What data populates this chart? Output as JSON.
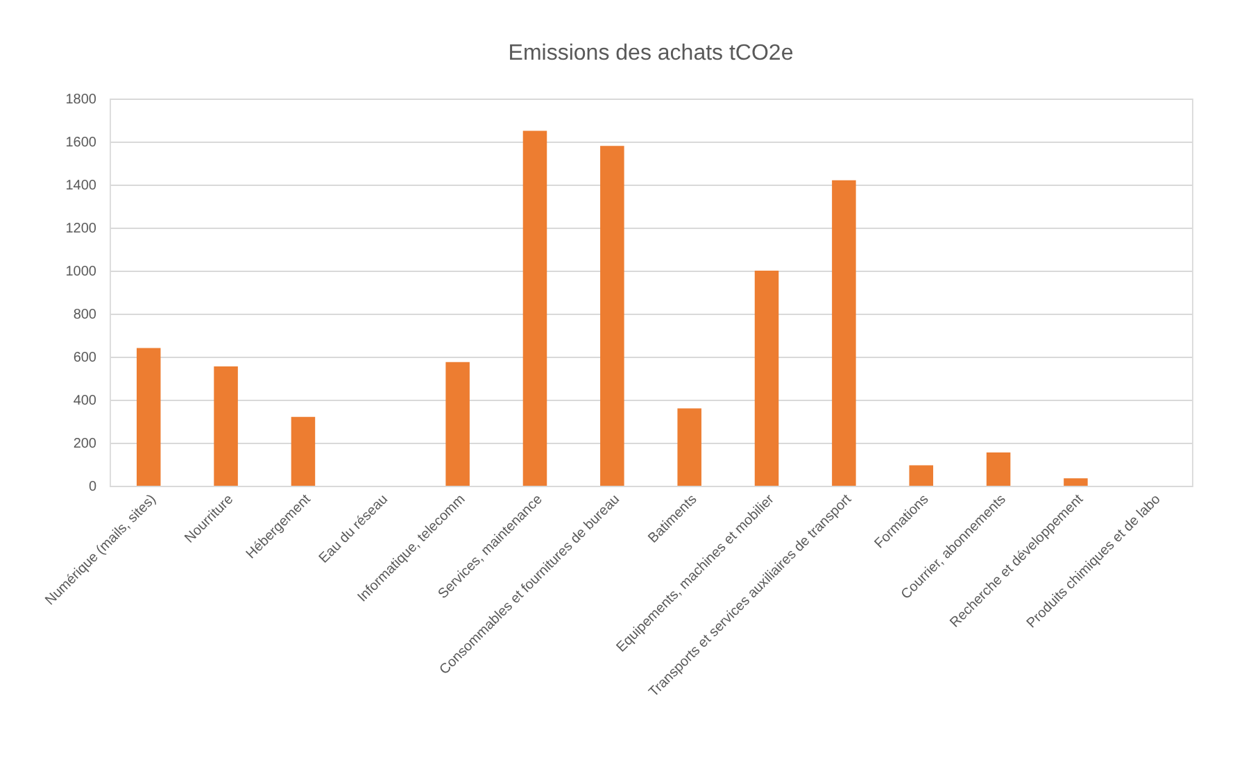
{
  "chart_data": {
    "type": "bar",
    "title": "Emissions des achats tCO2e",
    "categories": [
      "Numérique (mails, sites)",
      "Nourriture",
      "Hébergement",
      "Eau du réseau",
      "Informatique, telecomm",
      "Services, maintenance",
      "Consommables et fournitures de bureau",
      "Batiments",
      "Equipements, machines et mobilier",
      "Transports et services auxiliaires de transport",
      "Formations",
      "Courrier, abonnements",
      "Recherche et développement",
      "Produits chimiques et de labo"
    ],
    "values": [
      640,
      555,
      320,
      0,
      575,
      1650,
      1580,
      360,
      1000,
      1420,
      95,
      155,
      35,
      0
    ],
    "color": "#ed7d31",
    "ylim": [
      0,
      1800
    ],
    "yticks": [
      0,
      200,
      400,
      600,
      800,
      1000,
      1200,
      1400,
      1600,
      1800
    ],
    "grid": "y"
  }
}
